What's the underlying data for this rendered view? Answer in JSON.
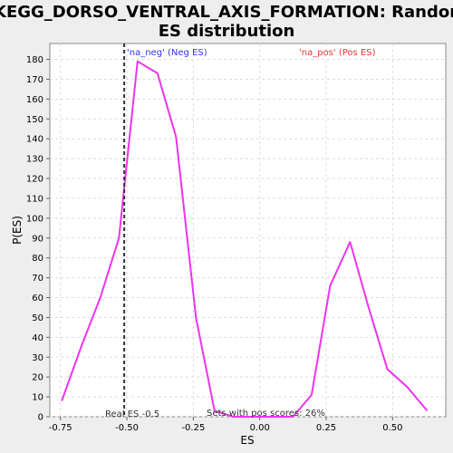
{
  "chart_data": {
    "type": "line",
    "title_line1": "KEGG_DORSO_VENTRAL_AXIS_FORMATION: Random",
    "title_line2": "ES distribution",
    "xlabel": "ES",
    "ylabel": "P(ES)",
    "xlim": [
      -0.79,
      0.7
    ],
    "ylim": [
      0,
      188
    ],
    "x_ticks": [
      -0.75,
      -0.5,
      -0.25,
      0.0,
      0.25,
      0.5
    ],
    "x_tick_labels": [
      "-0.75",
      "-0.50",
      "-0.25",
      "0.00",
      "0.25",
      "0.50"
    ],
    "y_ticks": [
      0,
      10,
      20,
      30,
      40,
      50,
      60,
      70,
      80,
      90,
      100,
      110,
      120,
      130,
      140,
      150,
      160,
      170,
      180
    ],
    "grid": true,
    "series": [
      {
        "color": "#ee33ee",
        "x": [
          -0.745,
          -0.67,
          -0.6,
          -0.53,
          -0.46,
          -0.385,
          -0.315,
          -0.24,
          -0.17,
          -0.1,
          -0.03,
          0.05,
          0.125,
          0.195,
          0.265,
          0.34,
          0.41,
          0.48,
          0.555,
          0.63
        ],
        "y": [
          8,
          36,
          60,
          90,
          179,
          173,
          141,
          50,
          3,
          0,
          0,
          0,
          0,
          11,
          66,
          88,
          55,
          24,
          15,
          3
        ]
      }
    ],
    "real_es": -0.51,
    "annotations": {
      "neg_label": "'na_neg' (Neg ES)",
      "pos_label": "'na_pos' (Pos ES)",
      "real_es_label": "Real ES -0.5",
      "pos_scores_label": "Sets with pos scores: 26%"
    },
    "colors": {
      "line": "#ee33ee",
      "neg": "#3333ee",
      "pos": "#ee3333",
      "grid": "#dddddd",
      "background": "#ffffff"
    }
  }
}
